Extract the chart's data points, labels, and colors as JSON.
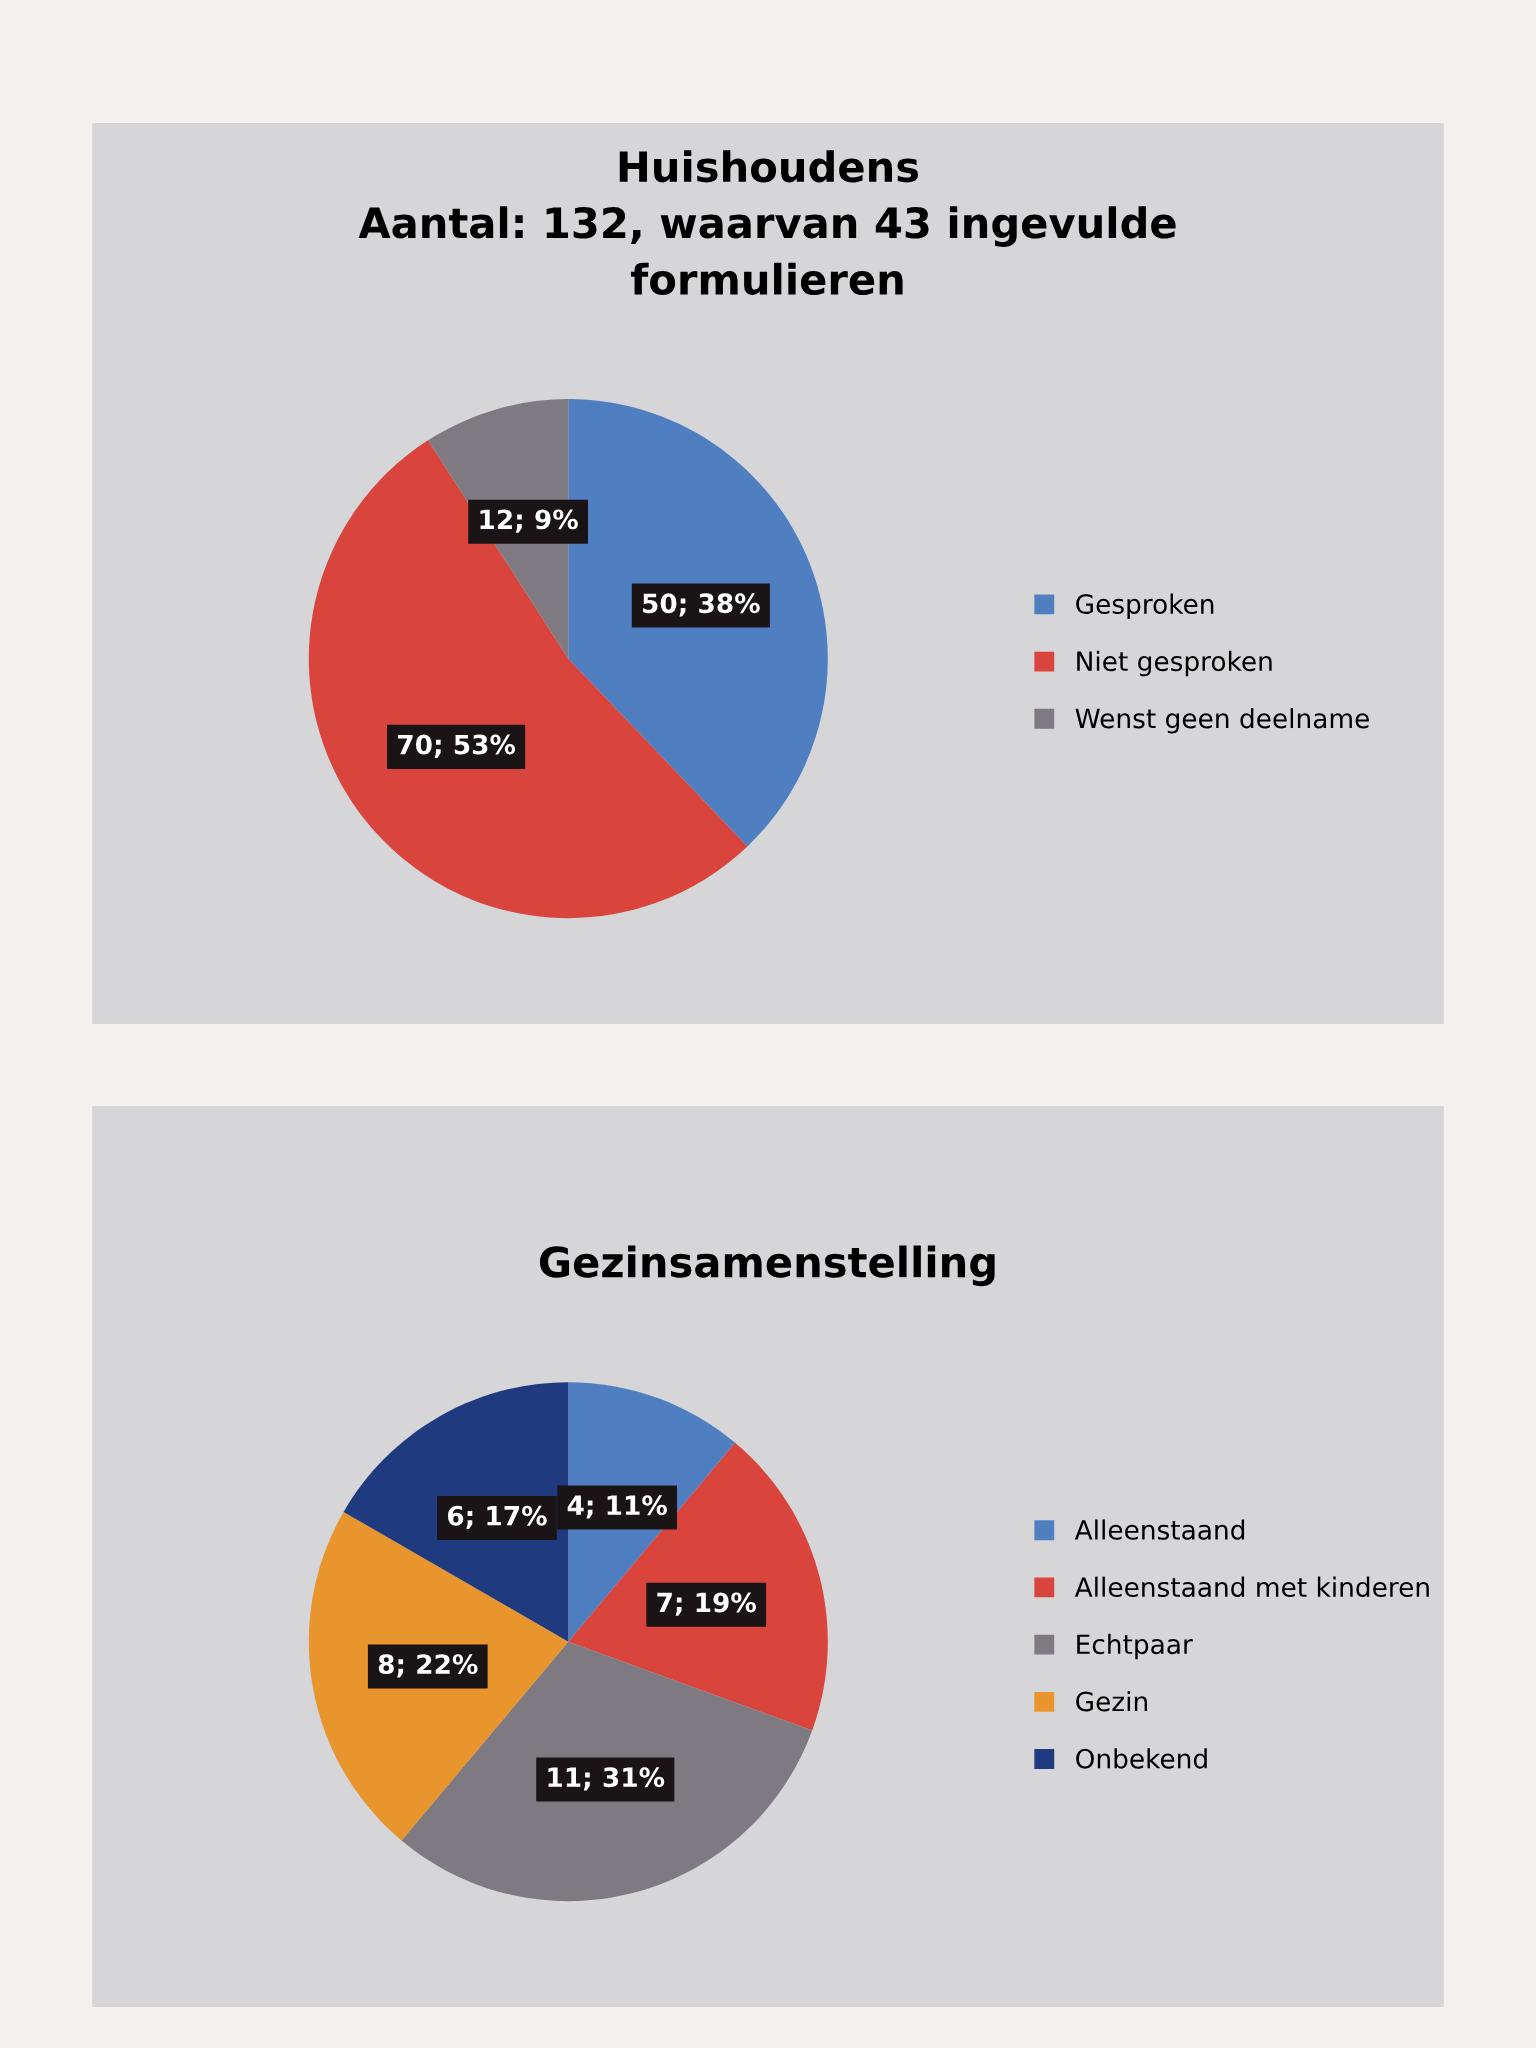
{
  "chart_data": [
    {
      "type": "pie",
      "title": "Huishoudens\nAantal: 132, waarvan 43 ingevulde\nformulieren",
      "categories": [
        "Gesproken",
        "Niet gesproken",
        "Wenst geen deelname"
      ],
      "values": [
        50,
        70,
        12
      ],
      "colors": [
        "#4f7fc0",
        "#d9443c",
        "#7f7a82"
      ],
      "value_labels": [
        "50; 38%",
        "70; 53%",
        "12; 9%"
      ],
      "legend": "right"
    },
    {
      "type": "pie",
      "title": "Gezinsamenstelling",
      "categories": [
        "Alleenstaand",
        "Alleenstaand met kinderen",
        "Echtpaar",
        "Gezin",
        "Onbekend"
      ],
      "values": [
        4,
        7,
        11,
        8,
        6
      ],
      "colors": [
        "#4f7fc0",
        "#d9443c",
        "#7f7a82",
        "#e8952e",
        "#203a80"
      ],
      "value_labels": [
        "4; 11%",
        "7; 19%",
        "11; 31%",
        "8; 22%",
        "6; 17%"
      ],
      "legend": "right"
    }
  ]
}
